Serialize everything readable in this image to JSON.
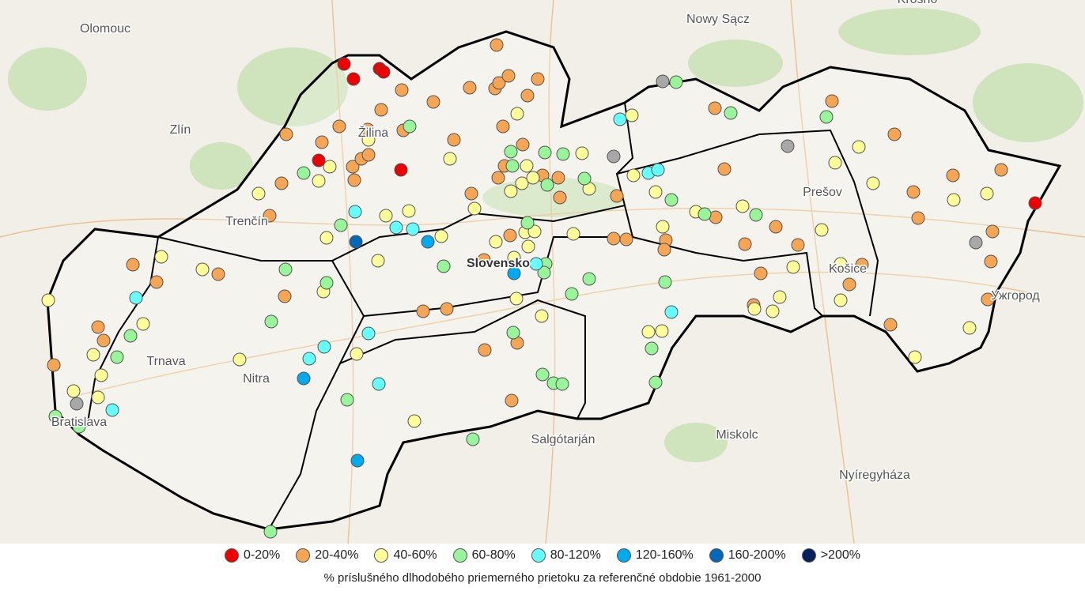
{
  "map": {
    "labels": [
      "Olomouc",
      "Zlín",
      "Trenčín",
      "Trnava",
      "Nitra",
      "Bratislava",
      "Žilina",
      "Prešov",
      "Košice",
      "Ужгород",
      "Nowy Sącz",
      "Krosno",
      "Salgótarján",
      "Miskolc",
      "Nyíregyháza",
      "Slovensko"
    ],
    "legend": [
      {
        "label": "0-20%",
        "color": "#ee0000"
      },
      {
        "label": "20-40%",
        "color": "#f5a553"
      },
      {
        "label": "40-60%",
        "color": "#ffff99"
      },
      {
        "label": "60-80%",
        "color": "#99f599"
      },
      {
        "label": "80-120%",
        "color": "#66ffff"
      },
      {
        "label": "120-160%",
        "color": "#00aaee"
      },
      {
        "label": "160-200%",
        "color": "#0068b8"
      },
      {
        "label": ">200%",
        "color": "#002060"
      }
    ],
    "caption": "% príslušného dlhodobého priemerného prietoku za referenčné obdobie 1961-2000"
  }
}
